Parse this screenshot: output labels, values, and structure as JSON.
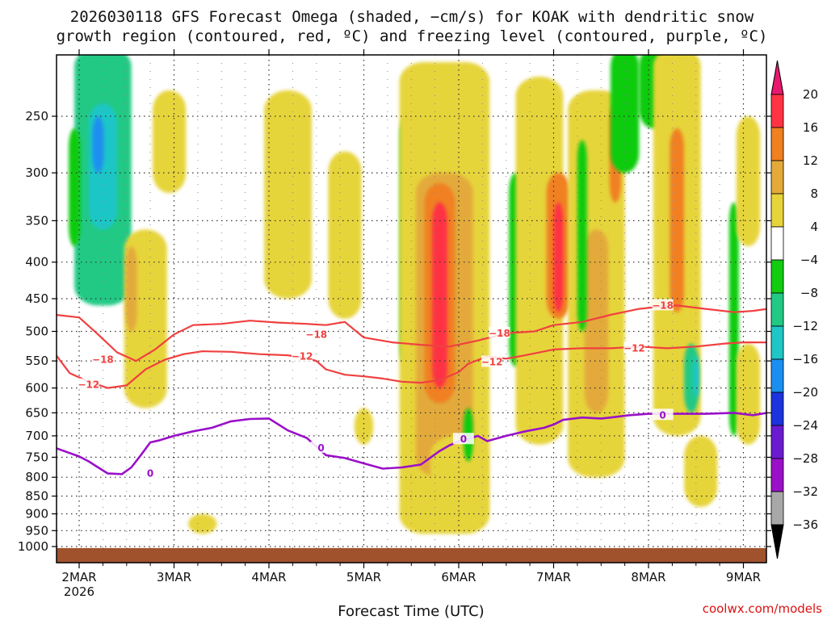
{
  "chart_data": {
    "type": "heatmap",
    "title_lines": [
      "2026030118 GFS Forecast Omega (shaded, −cm/s) for KOAK with dendritic snow",
      "growth region (contoured, red, ºC) and freezing level (contoured, purple, ºC)"
    ],
    "xlabel": "Forecast Time (UTC)",
    "credit": "coolwx.com/models",
    "x_ticks": [
      "2MAR",
      "3MAR",
      "4MAR",
      "5MAR",
      "6MAR",
      "7MAR",
      "8MAR",
      "9MAR"
    ],
    "x_sublabel": "2026",
    "x_range_days": [
      -0.25,
      7.25
    ],
    "y_ticks": [
      250,
      300,
      350,
      400,
      450,
      500,
      550,
      600,
      650,
      700,
      750,
      800,
      850,
      900,
      950,
      1000
    ],
    "y_range_hpa": [
      200,
      1030
    ],
    "ground_hpa": 1005,
    "colorbar": {
      "labels": [
        "20",
        "16",
        "12",
        "8",
        "4",
        "−4",
        "−8",
        "−12",
        "−16",
        "−20",
        "−24",
        "−28",
        "−32",
        "−36"
      ],
      "bins": [
        {
          "lo": 16,
          "hi": 20,
          "color": "#ff3344"
        },
        {
          "lo": 12,
          "hi": 16,
          "color": "#f08020"
        },
        {
          "lo": 8,
          "hi": 12,
          "color": "#e3aa3a"
        },
        {
          "lo": 4,
          "hi": 8,
          "color": "#e6d43a"
        },
        {
          "lo": -4,
          "hi": 4,
          "color": "#ffffff"
        },
        {
          "lo": -8,
          "hi": -4,
          "color": "#11cc11"
        },
        {
          "lo": -12,
          "hi": -8,
          "color": "#22c985"
        },
        {
          "lo": -16,
          "hi": -12,
          "color": "#1fc6c6"
        },
        {
          "lo": -20,
          "hi": -16,
          "color": "#1a8ff0"
        },
        {
          "lo": -24,
          "hi": -20,
          "color": "#1c33dd"
        },
        {
          "lo": -28,
          "hi": -24,
          "color": "#6a1bd0"
        },
        {
          "lo": -32,
          "hi": -28,
          "color": "#9a10c8"
        },
        {
          "lo": -36,
          "hi": -32,
          "color": "#a8a8a8"
        }
      ],
      "top_arrow_color": "#e8186e",
      "bottom_arrow_color": "#000000"
    },
    "colors": {
      "dgz": "#f04040",
      "freezing": "#9a10c8",
      "ground": "#a0522d",
      "grid": "#333333"
    },
    "series": [
      {
        "name": "-18C isotherm",
        "level_c": -18,
        "kind": "dgz",
        "x": [
          -0.25,
          0.0,
          0.2,
          0.4,
          0.6,
          0.8,
          1.0,
          1.2,
          1.5,
          1.8,
          2.1,
          2.4,
          2.6,
          2.8,
          3.0,
          3.3,
          3.6,
          3.9,
          4.2,
          4.5,
          4.8,
          5.0,
          5.3,
          5.6,
          5.9,
          6.1,
          6.3,
          6.6,
          6.9,
          7.1,
          7.25
        ],
        "y": [
          474,
          478,
          505,
          535,
          550,
          530,
          505,
          490,
          488,
          483,
          486,
          488,
          490,
          485,
          510,
          518,
          522,
          525,
          515,
          503,
          500,
          490,
          485,
          474,
          465,
          462,
          460,
          465,
          470,
          468,
          465
        ],
        "labels": [
          {
            "x": 0.25,
            "y": 548
          },
          {
            "x": 2.5,
            "y": 505
          },
          {
            "x": 4.43,
            "y": 503
          },
          {
            "x": 6.15,
            "y": 460
          }
        ]
      },
      {
        "name": "-12C isotherm",
        "level_c": -12,
        "kind": "dgz",
        "x": [
          -0.25,
          -0.1,
          0.1,
          0.3,
          0.5,
          0.7,
          0.9,
          1.1,
          1.3,
          1.6,
          1.9,
          2.2,
          2.4,
          2.5,
          2.6,
          2.8,
          3.0,
          3.2,
          3.4,
          3.6,
          3.8,
          4.0,
          4.1,
          4.3,
          4.5,
          4.7,
          5.0,
          5.3,
          5.6,
          5.9,
          6.2,
          6.5,
          6.8,
          7.0,
          7.25
        ],
        "y": [
          538,
          572,
          588,
          600,
          595,
          565,
          548,
          538,
          533,
          534,
          538,
          540,
          545,
          550,
          565,
          575,
          578,
          582,
          588,
          590,
          585,
          570,
          555,
          542,
          546,
          540,
          530,
          528,
          528,
          525,
          528,
          525,
          520,
          518,
          518
        ],
        "labels": [
          {
            "x": 0.1,
            "y": 594
          },
          {
            "x": 2.35,
            "y": 542
          },
          {
            "x": 4.35,
            "y": 552
          },
          {
            "x": 5.85,
            "y": 528
          }
        ]
      },
      {
        "name": "0C isotherm",
        "level_c": 0,
        "kind": "freezing",
        "x": [
          -0.25,
          -0.1,
          0.0,
          0.1,
          0.2,
          0.3,
          0.45,
          0.55,
          0.65,
          0.75,
          0.85,
          1.0,
          1.2,
          1.4,
          1.6,
          1.8,
          2.0,
          2.2,
          2.4,
          2.6,
          2.8,
          3.0,
          3.2,
          3.4,
          3.6,
          3.8,
          3.9,
          4.0,
          4.1,
          4.2,
          4.3,
          4.5,
          4.7,
          4.9,
          5.0,
          5.1,
          5.3,
          5.5,
          5.6,
          5.8,
          6.0,
          6.3,
          6.6,
          6.9,
          7.1,
          7.25
        ],
        "y": [
          728,
          740,
          748,
          760,
          775,
          790,
          792,
          775,
          745,
          715,
          710,
          700,
          690,
          682,
          668,
          663,
          662,
          688,
          705,
          745,
          752,
          765,
          778,
          775,
          768,
          735,
          722,
          712,
          708,
          700,
          712,
          700,
          690,
          682,
          675,
          665,
          660,
          662,
          660,
          655,
          652,
          652,
          652,
          650,
          655,
          650
        ],
        "labels": [
          {
            "x": 0.75,
            "y": 790
          },
          {
            "x": 2.55,
            "y": 728
          },
          {
            "x": 4.05,
            "y": 708
          },
          {
            "x": 6.15,
            "y": 655
          }
        ]
      }
    ],
    "omega_cells": [
      {
        "day": 0.25,
        "p_top": 200,
        "p_bot": 460,
        "value": -10,
        "w": 0.6
      },
      {
        "day": 0.25,
        "p_top": 240,
        "p_bot": 360,
        "value": -14,
        "w": 0.3
      },
      {
        "day": 0.2,
        "p_top": 250,
        "p_bot": 300,
        "value": -17,
        "w": 0.12
      },
      {
        "day": -0.05,
        "p_top": 260,
        "p_bot": 380,
        "value": -6,
        "w": 0.12
      },
      {
        "day": 0.7,
        "p_top": 360,
        "p_bot": 640,
        "value": 6,
        "w": 0.45
      },
      {
        "day": 0.55,
        "p_top": 380,
        "p_bot": 500,
        "value": 10,
        "w": 0.12
      },
      {
        "day": 0.95,
        "p_top": 230,
        "p_bot": 320,
        "value": 5,
        "w": 0.35
      },
      {
        "day": 2.2,
        "p_top": 230,
        "p_bot": 450,
        "value": 5,
        "w": 0.5
      },
      {
        "day": 2.8,
        "p_top": 280,
        "p_bot": 480,
        "value": 5,
        "w": 0.35
      },
      {
        "day": 3.45,
        "p_top": 250,
        "p_bot": 560,
        "value": -7,
        "w": 0.14
      },
      {
        "day": 3.48,
        "p_top": 340,
        "p_bot": 450,
        "value": -14,
        "w": 0.06
      },
      {
        "day": 3.85,
        "p_top": 210,
        "p_bot": 960,
        "value": 6,
        "w": 0.95
      },
      {
        "day": 3.85,
        "p_top": 300,
        "p_bot": 800,
        "value": 10,
        "w": 0.6
      },
      {
        "day": 3.8,
        "p_top": 310,
        "p_bot": 630,
        "value": 14,
        "w": 0.32
      },
      {
        "day": 3.8,
        "p_top": 330,
        "p_bot": 600,
        "value": 18,
        "w": 0.16
      },
      {
        "day": 4.6,
        "p_top": 300,
        "p_bot": 560,
        "value": -7,
        "w": 0.14
      },
      {
        "day": 4.75,
        "p_top": 500,
        "p_bot": 620,
        "value": -7,
        "w": 0.1
      },
      {
        "day": 4.85,
        "p_top": 220,
        "p_bot": 720,
        "value": 5,
        "w": 0.5
      },
      {
        "day": 5.05,
        "p_top": 300,
        "p_bot": 480,
        "value": 15,
        "w": 0.25
      },
      {
        "day": 5.05,
        "p_top": 330,
        "p_bot": 470,
        "value": 18,
        "w": 0.1
      },
      {
        "day": 5.45,
        "p_top": 230,
        "p_bot": 800,
        "value": 6,
        "w": 0.6
      },
      {
        "day": 5.45,
        "p_top": 360,
        "p_bot": 650,
        "value": 10,
        "w": 0.25
      },
      {
        "day": 5.3,
        "p_top": 270,
        "p_bot": 500,
        "value": -8,
        "w": 0.1
      },
      {
        "day": 5.65,
        "p_top": 240,
        "p_bot": 330,
        "value": 13,
        "w": 0.12
      },
      {
        "day": 5.75,
        "p_top": 200,
        "p_bot": 300,
        "value": -7,
        "w": 0.3
      },
      {
        "day": 6.05,
        "p_top": 200,
        "p_bot": 260,
        "value": -6,
        "w": 0.3
      },
      {
        "day": 6.3,
        "p_top": 200,
        "p_bot": 700,
        "value": 6,
        "w": 0.5
      },
      {
        "day": 6.3,
        "p_top": 260,
        "p_bot": 470,
        "value": 12,
        "w": 0.15
      },
      {
        "day": 6.45,
        "p_top": 520,
        "p_bot": 650,
        "value": -11,
        "w": 0.15
      },
      {
        "day": 6.5,
        "p_top": 540,
        "p_bot": 620,
        "value": -15,
        "w": 0.07
      },
      {
        "day": 6.55,
        "p_top": 700,
        "p_bot": 880,
        "value": 6,
        "w": 0.35
      },
      {
        "day": 6.9,
        "p_top": 330,
        "p_bot": 700,
        "value": -7,
        "w": 0.1
      },
      {
        "day": 7.05,
        "p_top": 250,
        "p_bot": 380,
        "value": 5,
        "w": 0.25
      },
      {
        "day": 7.05,
        "p_top": 520,
        "p_bot": 720,
        "value": 5,
        "w": 0.25
      },
      {
        "day": 4.0,
        "p_top": 700,
        "p_bot": 940,
        "value": 6,
        "w": 0.6
      },
      {
        "day": 4.1,
        "p_top": 640,
        "p_bot": 760,
        "value": -8,
        "w": 0.1
      },
      {
        "day": 1.3,
        "p_top": 900,
        "p_bot": 960,
        "value": 5,
        "w": 0.3
      },
      {
        "day": 3.0,
        "p_top": 640,
        "p_bot": 720,
        "value": 5,
        "w": 0.2
      }
    ]
  }
}
